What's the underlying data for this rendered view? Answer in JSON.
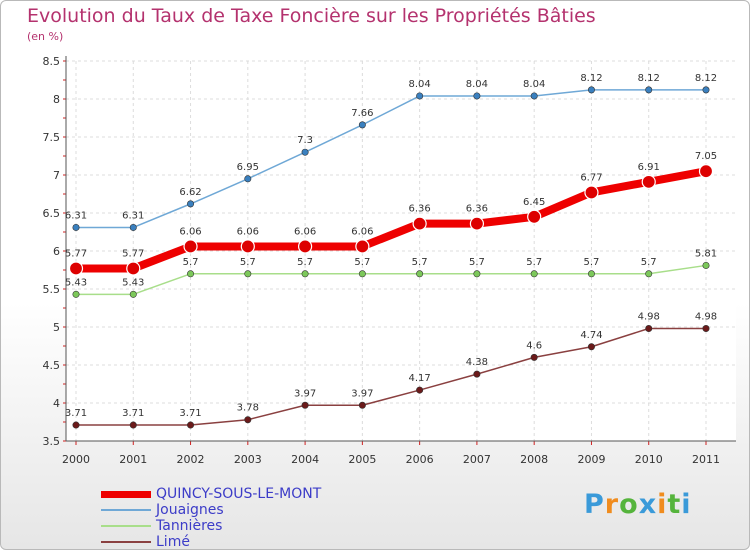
{
  "chart_data": {
    "type": "line",
    "title": "Evolution du Taux de Taxe Foncière sur les Propriétés Bâties",
    "ylabel": "(en %)",
    "ylim": [
      3.5,
      8.5
    ],
    "yticks": [
      "3.5",
      "4",
      "4.5",
      "5",
      "5.5",
      "6",
      "6.5",
      "7",
      "7.5",
      "8",
      "8.5"
    ],
    "x": [
      "2000",
      "2001",
      "2002",
      "2003",
      "2004",
      "2005",
      "2006",
      "2007",
      "2008",
      "2009",
      "2010",
      "2011"
    ],
    "grid": true,
    "legend_position": "bottom-left",
    "series": [
      {
        "name": "QUINCY-SOUS-LE-MONT",
        "color": "#ee0000",
        "marker": "#dd0000",
        "bold": true,
        "values": [
          5.77,
          5.77,
          6.06,
          6.06,
          6.06,
          6.06,
          6.36,
          6.36,
          6.45,
          6.77,
          6.91,
          7.05
        ],
        "labels": [
          "5.77",
          "5.77",
          "6.06",
          "6.06",
          "6.06",
          "6.06",
          "6.36",
          "6.36",
          "6.45",
          "6.77",
          "6.91",
          "7.05"
        ]
      },
      {
        "name": "Jouaignes",
        "color": "#6fa8d6",
        "marker": "#3a80bf",
        "bold": false,
        "values": [
          6.31,
          6.31,
          6.62,
          6.95,
          7.3,
          7.66,
          8.04,
          8.04,
          8.04,
          8.12,
          8.12,
          8.12
        ],
        "labels": [
          "6.31",
          "6.31",
          "6.62",
          "6.95",
          "7.3",
          "7.66",
          "8.04",
          "8.04",
          "8.04",
          "8.12",
          "8.12",
          "8.12"
        ]
      },
      {
        "name": "Tannières",
        "color": "#a8de8a",
        "marker": "#7cc85a",
        "bold": false,
        "values": [
          5.43,
          5.43,
          5.7,
          5.7,
          5.7,
          5.7,
          5.7,
          5.7,
          5.7,
          5.7,
          5.7,
          5.81
        ],
        "labels": [
          "5.43",
          "5.43",
          "5.7",
          "5.7",
          "5.7",
          "5.7",
          "5.7",
          "5.7",
          "5.7",
          "5.7",
          "5.7",
          "5.81"
        ]
      },
      {
        "name": "Limé",
        "color": "#8a4040",
        "marker": "#6b1a1a",
        "bold": false,
        "values": [
          3.71,
          3.71,
          3.71,
          3.78,
          3.97,
          3.97,
          4.17,
          4.38,
          4.6,
          4.74,
          4.98,
          4.98
        ],
        "labels": [
          "3.71",
          "3.71",
          "3.71",
          "3.78",
          "3.97",
          "3.97",
          "4.17",
          "4.38",
          "4.6",
          "4.74",
          "4.98",
          "4.98"
        ]
      }
    ]
  },
  "logo": {
    "letters": [
      "P",
      "r",
      "o",
      "x",
      "i",
      "t",
      "i"
    ],
    "colors": [
      "#3a9ad9",
      "#f08c1e",
      "#55b43c",
      "#3a9ad9",
      "#f08c1e",
      "#55b43c",
      "#3a9ad9"
    ]
  }
}
